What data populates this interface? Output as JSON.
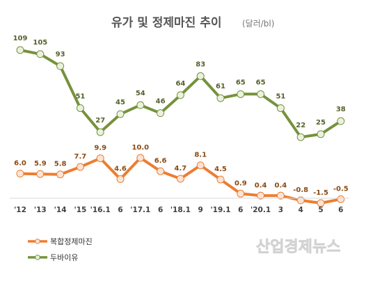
{
  "chart_data": {
    "type": "line",
    "title": "유가 및 정제마진 추이",
    "unit": "(달러/bl)",
    "categories": [
      "'12",
      "'13",
      "'14",
      "'15",
      "'16.1",
      "6",
      "'17.1",
      "6",
      "'18.1",
      "9",
      "'19.1",
      "6",
      "'20.1",
      "3",
      "4",
      "5",
      "6"
    ],
    "series": [
      {
        "name": "두바이유",
        "color": "#76923c",
        "values": [
          109,
          105,
          93,
          51,
          27,
          45,
          54,
          46,
          64,
          83,
          61,
          65,
          65,
          51,
          22,
          25,
          38
        ],
        "labels": [
          "109",
          "105",
          "93",
          "51",
          "27",
          "45",
          "54",
          "46",
          "64",
          "83",
          "61",
          "65",
          "65",
          "51",
          "22",
          "25",
          "38"
        ]
      },
      {
        "name": "복합정제마진",
        "color": "#ed7d31",
        "values": [
          6.0,
          5.9,
          5.8,
          7.7,
          9.9,
          4.6,
          10.0,
          6.6,
          4.7,
          8.1,
          4.5,
          0.9,
          0.4,
          0.4,
          -0.8,
          -1.5,
          -0.5
        ],
        "labels": [
          "6.0",
          "5.9",
          "5.8",
          "7.7",
          "9.9",
          "4.6",
          "10.0",
          "6.6",
          "4.7",
          "8.1",
          "4.5",
          "0.9",
          "0.4",
          "0.4",
          "-0.8",
          "-1.5",
          "-0.5"
        ]
      }
    ],
    "legend": [
      "복합정제마진",
      "두바이유"
    ],
    "legend_position": "bottom-left",
    "grid": false
  },
  "watermark": "산업경제뉴스"
}
